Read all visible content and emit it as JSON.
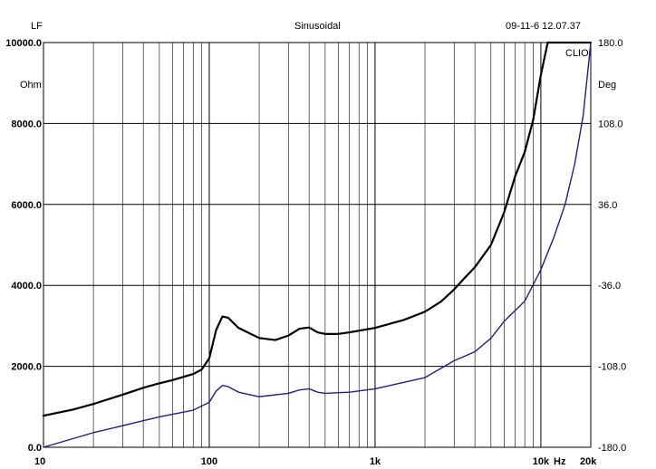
{
  "header": {
    "left": "LF",
    "center": "Sinusoidal",
    "right": "09-11-6 12.07.37"
  },
  "chart_data": {
    "type": "line",
    "title": "Sinusoidal",
    "x_scale": "log",
    "xlim": [
      10,
      20000
    ],
    "x_ticks": [
      {
        "value": 10,
        "label": "10"
      },
      {
        "value": 100,
        "label": "100"
      },
      {
        "value": 1000,
        "label": "1k"
      },
      {
        "value": 10000,
        "label": "10k"
      }
    ],
    "x_unit": "Hz",
    "x_end_label": "20k",
    "y_left": {
      "unit": "Ohm",
      "lim": [
        0,
        10000
      ],
      "ticks": [
        {
          "value": 10000,
          "label": "10000.0"
        },
        {
          "value": 8000,
          "label": "8000.0"
        },
        {
          "value": 6000,
          "label": "6000.0"
        },
        {
          "value": 4000,
          "label": "4000.0"
        },
        {
          "value": 2000,
          "label": "2000.0"
        },
        {
          "value": 0,
          "label": "0.0"
        }
      ]
    },
    "y_right": {
      "unit": "Deg",
      "lim": [
        -180,
        180
      ],
      "ticks": [
        {
          "value": 180,
          "label": "180.0"
        },
        {
          "value": 108,
          "label": "108.0"
        },
        {
          "value": 36,
          "label": "36.0"
        },
        {
          "value": -36,
          "label": "-36.0"
        },
        {
          "value": -108,
          "label": "-108.0"
        },
        {
          "value": -180,
          "label": "-180.0"
        }
      ]
    },
    "grid": true,
    "annotation": "CLIO",
    "series": [
      {
        "color": "#000000",
        "axis": "left",
        "points": [
          [
            10,
            780
          ],
          [
            15,
            930
          ],
          [
            20,
            1070
          ],
          [
            30,
            1300
          ],
          [
            40,
            1470
          ],
          [
            50,
            1580
          ],
          [
            60,
            1660
          ],
          [
            70,
            1740
          ],
          [
            80,
            1810
          ],
          [
            90,
            1920
          ],
          [
            100,
            2200
          ],
          [
            110,
            2900
          ],
          [
            120,
            3230
          ],
          [
            130,
            3200
          ],
          [
            150,
            2950
          ],
          [
            200,
            2700
          ],
          [
            250,
            2650
          ],
          [
            300,
            2760
          ],
          [
            350,
            2930
          ],
          [
            400,
            2960
          ],
          [
            450,
            2840
          ],
          [
            500,
            2800
          ],
          [
            600,
            2800
          ],
          [
            700,
            2840
          ],
          [
            800,
            2880
          ],
          [
            1000,
            2950
          ],
          [
            1500,
            3150
          ],
          [
            2000,
            3350
          ],
          [
            2500,
            3600
          ],
          [
            3000,
            3900
          ],
          [
            3500,
            4200
          ],
          [
            4000,
            4450
          ],
          [
            5000,
            5000
          ],
          [
            6000,
            5800
          ],
          [
            7000,
            6700
          ],
          [
            8000,
            7300
          ],
          [
            9000,
            8100
          ],
          [
            10000,
            9200
          ],
          [
            11000,
            10000
          ],
          [
            20000,
            10000
          ]
        ]
      },
      {
        "color": "#20208a",
        "axis": "right",
        "points": [
          [
            10,
            -180
          ],
          [
            20,
            -167
          ],
          [
            50,
            -153
          ],
          [
            80,
            -147
          ],
          [
            100,
            -140
          ],
          [
            110,
            -130
          ],
          [
            120,
            -125
          ],
          [
            130,
            -126
          ],
          [
            150,
            -131
          ],
          [
            200,
            -135
          ],
          [
            300,
            -132
          ],
          [
            350,
            -129
          ],
          [
            400,
            -128
          ],
          [
            450,
            -131
          ],
          [
            500,
            -132
          ],
          [
            700,
            -131
          ],
          [
            1000,
            -128
          ],
          [
            2000,
            -118
          ],
          [
            3000,
            -103
          ],
          [
            4000,
            -95
          ],
          [
            5000,
            -83
          ],
          [
            6000,
            -68
          ],
          [
            8000,
            -50
          ],
          [
            10000,
            -22
          ],
          [
            12000,
            7
          ],
          [
            14000,
            36
          ],
          [
            16000,
            72
          ],
          [
            18000,
            115
          ],
          [
            20000,
            180
          ]
        ]
      }
    ]
  }
}
